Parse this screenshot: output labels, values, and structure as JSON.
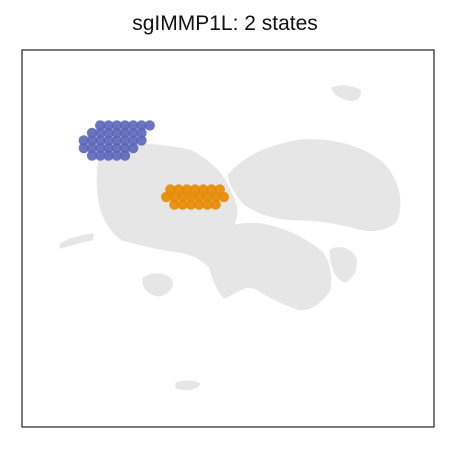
{
  "chart_data": {
    "type": "scatter",
    "title": "sgIMMP1L: 2 states",
    "xlabel": "",
    "ylabel": "",
    "grid": false,
    "legend": "none",
    "x_range": [
      0,
      100
    ],
    "y_range": [
      0,
      100
    ],
    "background_color": "#e6e6e6",
    "series": [
      {
        "color": "#5b66b8",
        "points": [
          [
            17,
            72
          ],
          [
            19,
            72
          ],
          [
            21,
            72
          ],
          [
            23,
            72
          ],
          [
            25,
            72
          ],
          [
            15,
            74
          ],
          [
            17,
            74
          ],
          [
            19,
            74
          ],
          [
            21,
            74
          ],
          [
            23,
            74
          ],
          [
            25,
            74
          ],
          [
            27,
            74
          ],
          [
            15,
            76
          ],
          [
            17,
            76
          ],
          [
            19,
            76
          ],
          [
            21,
            76
          ],
          [
            23,
            76
          ],
          [
            25,
            76
          ],
          [
            27,
            76
          ],
          [
            29,
            76
          ],
          [
            17,
            78
          ],
          [
            19,
            78
          ],
          [
            21,
            78
          ],
          [
            23,
            78
          ],
          [
            25,
            78
          ],
          [
            27,
            78
          ],
          [
            29,
            78
          ],
          [
            19,
            80
          ],
          [
            21,
            80
          ],
          [
            23,
            80
          ],
          [
            25,
            80
          ],
          [
            27,
            80
          ],
          [
            29,
            80
          ],
          [
            31,
            80
          ]
        ]
      },
      {
        "color": "#e68a00",
        "points": [
          [
            37,
            59
          ],
          [
            39,
            59
          ],
          [
            41,
            59
          ],
          [
            43,
            59
          ],
          [
            45,
            59
          ],
          [
            47,
            59
          ],
          [
            35,
            61
          ],
          [
            37,
            61
          ],
          [
            39,
            61
          ],
          [
            41,
            61
          ],
          [
            43,
            61
          ],
          [
            45,
            61
          ],
          [
            47,
            61
          ],
          [
            49,
            61
          ],
          [
            36,
            63
          ],
          [
            38,
            63
          ],
          [
            40,
            63
          ],
          [
            42,
            63
          ],
          [
            44,
            63
          ],
          [
            46,
            63
          ],
          [
            48,
            63
          ]
        ]
      }
    ]
  }
}
